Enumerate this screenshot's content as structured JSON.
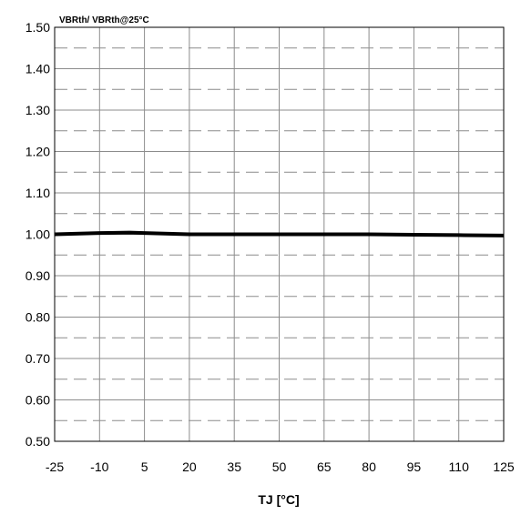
{
  "chart_data": {
    "type": "line",
    "title": "",
    "xlabel": "TJ [°C]",
    "ylabel": "VBRth/ VBRth@25°C",
    "xlim": [
      -25,
      125
    ],
    "ylim": [
      0.5,
      1.5
    ],
    "xticks": [
      -25,
      -10,
      5,
      20,
      35,
      50,
      65,
      80,
      95,
      110,
      125
    ],
    "xtick_labels": [
      "-25",
      "-10",
      "5",
      "20",
      "35",
      "50",
      "65",
      "80",
      "95",
      "110",
      "125"
    ],
    "yticks": [
      0.5,
      0.6,
      0.7,
      0.8,
      0.9,
      1.0,
      1.1,
      1.2,
      1.3,
      1.4,
      1.5
    ],
    "ytick_labels": [
      "0.50",
      "0.60",
      "0.70",
      "0.80",
      "0.90",
      "1.00",
      "1.10",
      "1.20",
      "1.30",
      "1.40",
      "1.50"
    ],
    "minor_y_dashed": [
      0.55,
      0.65,
      0.75,
      0.85,
      0.95,
      1.05,
      1.15,
      1.25,
      1.35,
      1.45
    ],
    "grid": true,
    "series": [
      {
        "color": "#000000",
        "x": [
          -25,
          -10,
          0,
          5,
          20,
          35,
          50,
          65,
          80,
          95,
          110,
          125
        ],
        "y": [
          1.0,
          1.003,
          1.004,
          1.003,
          1.0,
          1.0,
          1.0,
          1.0,
          1.0,
          0.999,
          0.998,
          0.997
        ]
      }
    ]
  }
}
